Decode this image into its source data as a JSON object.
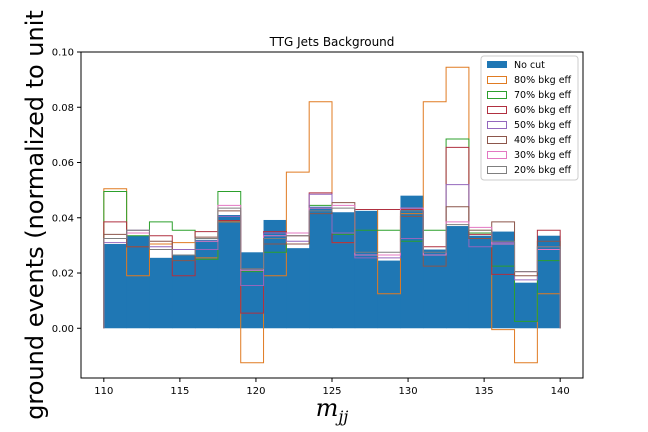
{
  "chart_data": {
    "type": "bar",
    "title": "TTG Jets Background",
    "xlabel": "m",
    "xlabel_sub": "jj",
    "ylabel": "ground events (normalized to unit",
    "xlim": [
      108.5,
      141.5
    ],
    "ylim": [
      -0.018,
      0.1
    ],
    "xticks": [
      110,
      115,
      120,
      125,
      130,
      135,
      140
    ],
    "yticks": [
      0.0,
      0.02,
      0.04,
      0.06,
      0.08,
      0.1
    ],
    "xtick_labels": [
      "110",
      "115",
      "120",
      "125",
      "130",
      "135",
      "140"
    ],
    "ytick_labels": [
      "0.00",
      "0.02",
      "0.04",
      "0.06",
      "0.08",
      "0.10"
    ],
    "bin_edges": [
      110,
      111.5,
      113,
      114.5,
      116,
      117.5,
      119,
      120.5,
      122,
      123.5,
      125,
      126.5,
      128,
      129.5,
      131,
      132.5,
      134,
      135.5,
      137,
      138.5,
      140
    ],
    "legend_position": "top-right",
    "series": [
      {
        "name": "No cut",
        "style": "filled",
        "color": "#1f77b4",
        "values": [
          0.0305,
          0.0335,
          0.0255,
          0.0265,
          0.032,
          0.041,
          0.0275,
          0.0392,
          0.029,
          0.044,
          0.042,
          0.0425,
          0.0245,
          0.048,
          0.0285,
          0.037,
          0.0335,
          0.035,
          0.0165,
          0.0335
        ]
      },
      {
        "name": "80% bkg eff",
        "style": "step",
        "color": "#e07b22",
        "values": [
          0.0505,
          0.019,
          0.0305,
          0.031,
          0.0255,
          0.0385,
          -0.0125,
          0.019,
          0.0565,
          0.082,
          0.031,
          0.043,
          0.0125,
          0.0415,
          0.082,
          0.0945,
          0.0355,
          -0.0005,
          -0.0125,
          0.0125
        ]
      },
      {
        "name": "70% bkg eff",
        "style": "step",
        "color": "#2ca02c",
        "values": [
          0.0495,
          0.0335,
          0.0385,
          0.0355,
          0.025,
          0.0495,
          0.0205,
          0.0275,
          0.0305,
          0.0445,
          0.034,
          0.0355,
          0.0355,
          0.0315,
          0.0355,
          0.0685,
          0.0345,
          0.0225,
          0.0025,
          0.0245
        ]
      },
      {
        "name": "60% bkg eff",
        "style": "step",
        "color": "#b03040",
        "values": [
          0.0385,
          0.0295,
          0.0335,
          0.019,
          0.035,
          0.039,
          0.0055,
          0.035,
          0.0335,
          0.049,
          0.031,
          0.043,
          0.043,
          0.043,
          0.0295,
          0.0655,
          0.034,
          0.0195,
          0.0205,
          0.0355
        ]
      },
      {
        "name": "50% bkg eff",
        "style": "step",
        "color": "#9467bd",
        "values": [
          0.031,
          0.0355,
          0.0295,
          0.0285,
          0.0285,
          0.0405,
          0.0155,
          0.0345,
          0.0315,
          0.0485,
          0.0345,
          0.0255,
          0.0255,
          0.0325,
          0.0265,
          0.052,
          0.0295,
          0.031,
          0.0175,
          0.0295
        ]
      },
      {
        "name": "40% bkg eff",
        "style": "step",
        "color": "#8c564b",
        "values": [
          0.034,
          0.0295,
          0.0315,
          0.0245,
          0.033,
          0.0425,
          0.0215,
          0.0305,
          0.0305,
          0.0415,
          0.0455,
          0.0265,
          0.0265,
          0.0405,
          0.0225,
          0.044,
          0.0325,
          0.0385,
          0.019,
          0.0315
        ]
      },
      {
        "name": "30% bkg eff",
        "style": "step",
        "color": "#e377c2",
        "values": [
          0.0325,
          0.0345,
          0.0285,
          0.0265,
          0.0315,
          0.0445,
          0.021,
          0.0335,
          0.0345,
          0.0435,
          0.0445,
          0.0265,
          0.0265,
          0.0435,
          0.0265,
          0.0385,
          0.0365,
          0.0305,
          0.0205,
          0.0285
        ]
      },
      {
        "name": "20% bkg eff",
        "style": "step",
        "color": "#7f7f7f",
        "values": [
          0.0325,
          0.0355,
          0.0285,
          0.0265,
          0.0325,
          0.0435,
          0.0215,
          0.0325,
          0.0335,
          0.0425,
          0.0435,
          0.0275,
          0.0275,
          0.0425,
          0.0275,
          0.0375,
          0.0355,
          0.0315,
          0.0205,
          0.0295
        ]
      }
    ]
  }
}
